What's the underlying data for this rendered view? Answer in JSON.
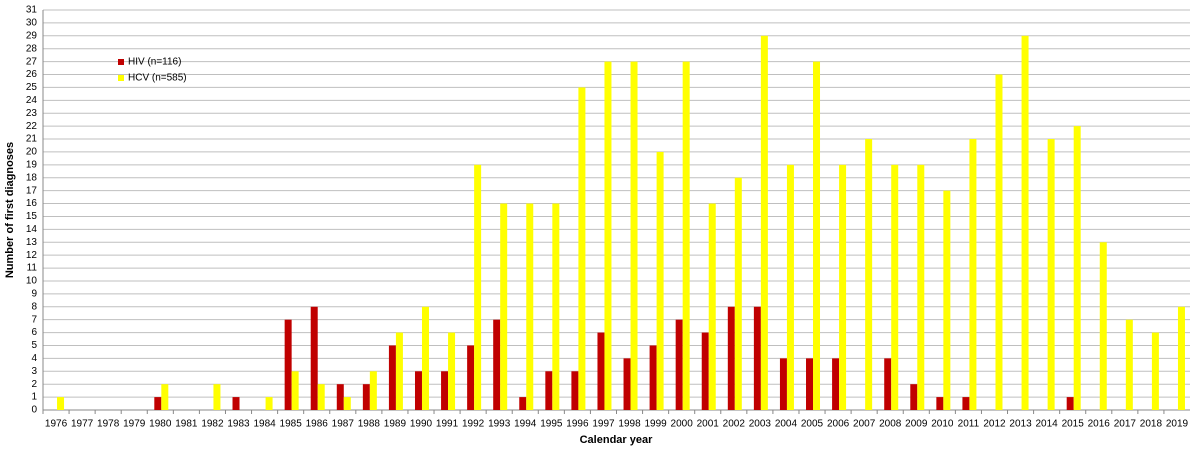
{
  "chart_data": {
    "type": "bar",
    "x_label": "Calendar year",
    "y_label": "Number of first diagnoses",
    "categories": [
      "1976",
      "1977",
      "1978",
      "1979",
      "1980",
      "1981",
      "1982",
      "1983",
      "1984",
      "1985",
      "1986",
      "1987",
      "1988",
      "1989",
      "1990",
      "1991",
      "1992",
      "1993",
      "1994",
      "1995",
      "1996",
      "1997",
      "1998",
      "1999",
      "2000",
      "2001",
      "2002",
      "2003",
      "2004",
      "2005",
      "2006",
      "2007",
      "2008",
      "2009",
      "2010",
      "2011",
      "2012",
      "2013",
      "2014",
      "2015",
      "2016",
      "2017",
      "2018",
      "2019"
    ],
    "series": [
      {
        "name": "HIV (n=116)",
        "color": "#c00000",
        "values": [
          0,
          0,
          0,
          0,
          1,
          0,
          0,
          1,
          0,
          7,
          8,
          2,
          2,
          5,
          3,
          3,
          5,
          7,
          1,
          3,
          3,
          6,
          4,
          5,
          7,
          6,
          8,
          8,
          4,
          4,
          4,
          0,
          4,
          2,
          1,
          1,
          0,
          0,
          0,
          1,
          0,
          0,
          0,
          0
        ]
      },
      {
        "name": "HCV (n=585)",
        "color": "#ffff00",
        "values": [
          1,
          0,
          0,
          0,
          2,
          0,
          2,
          0,
          1,
          3,
          2,
          1,
          3,
          6,
          8,
          6,
          19,
          16,
          16,
          16,
          25,
          27,
          27,
          20,
          27,
          16,
          18,
          29,
          19,
          27,
          19,
          21,
          19,
          19,
          17,
          21,
          26,
          29,
          21,
          22,
          13,
          7,
          6,
          8
        ]
      }
    ],
    "ylim": [
      0,
      31
    ],
    "yticks": [
      0,
      1,
      2,
      3,
      4,
      5,
      6,
      7,
      8,
      9,
      10,
      11,
      12,
      13,
      14,
      15,
      16,
      17,
      18,
      19,
      20,
      21,
      22,
      23,
      24,
      25,
      26,
      27,
      28,
      29,
      30,
      31
    ],
    "grid": true,
    "legend": "upper-left"
  }
}
